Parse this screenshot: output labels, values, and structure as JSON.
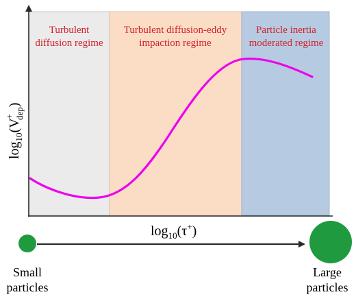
{
  "colors": {
    "region_1_fill": "#ebebeb",
    "region_2_fill": "#fbdcc4",
    "region_3_fill": "#b6cbe2",
    "region_label": "#d21f2a",
    "curve": "#ee00ee",
    "particle": "#1f9a3e",
    "axis": "#2a2a2a"
  },
  "regions": [
    {
      "line1": "Turbulent",
      "line2": "diffusion regime"
    },
    {
      "line1": "Turbulent diffusion-eddy",
      "line2": "impaction regime"
    },
    {
      "line1": "Particle inertia",
      "line2": "moderated regime"
    }
  ],
  "axes": {
    "y_label_main": "log",
    "y_label_sub": "10",
    "y_label_paren_open": "(V",
    "y_label_sup": "+",
    "y_label_subscript": "dep",
    "y_label_paren_close": ")",
    "x_label_main": "log",
    "x_label_sub": "10",
    "x_label_paren_open": "(τ",
    "x_label_sup": "+",
    "x_label_paren_close": ")"
  },
  "particles": {
    "small": {
      "line1": "Small",
      "line2": "particles"
    },
    "large": {
      "line1": "Large",
      "line2": "particles"
    }
  }
}
